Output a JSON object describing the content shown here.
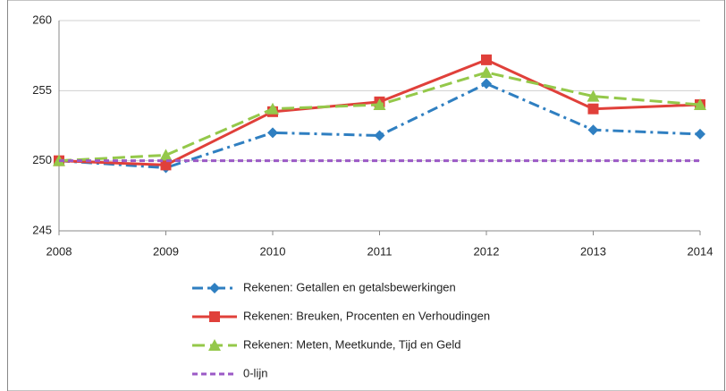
{
  "chart_data": {
    "type": "line",
    "categories": [
      "2008",
      "2009",
      "2010",
      "2011",
      "2012",
      "2013",
      "2014"
    ],
    "series": [
      {
        "name": "Rekenen: Getallen en getalsbewerkingen",
        "color": "#2f7fc1",
        "dash": "dashdot",
        "marker": "diamond",
        "values": [
          250,
          249.5,
          252,
          251.8,
          255.5,
          252.2,
          251.9
        ]
      },
      {
        "name": "Rekenen: Breuken, Procenten en Verhoudingen",
        "color": "#e0403a",
        "dash": "solid",
        "marker": "square",
        "values": [
          250,
          249.7,
          253.5,
          254.2,
          257.2,
          253.7,
          254
        ]
      },
      {
        "name": "Rekenen: Meten, Meetkunde, Tijd en Geld",
        "color": "#94c84a",
        "dash": "dash",
        "marker": "triangle",
        "values": [
          250,
          250.4,
          253.7,
          254,
          256.3,
          254.6,
          254
        ]
      },
      {
        "name": "0-lijn",
        "color": "#9b59c6",
        "dash": "shortdash",
        "marker": "none",
        "values": [
          250,
          250,
          250,
          250,
          250,
          250,
          250
        ]
      }
    ],
    "ylim": [
      245,
      260
    ],
    "yticks": [
      245,
      250,
      255,
      260
    ],
    "grid": true
  }
}
